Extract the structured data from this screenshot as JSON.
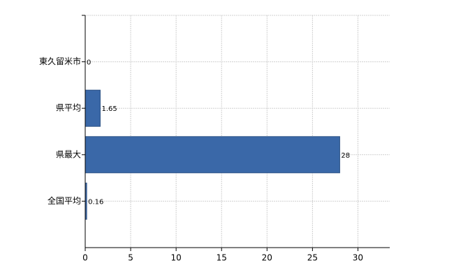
{
  "chart_data": {
    "type": "bar",
    "orientation": "horizontal",
    "categories": [
      "東久留米市",
      "県平均",
      "県最大",
      "全国平均"
    ],
    "values": [
      0,
      1.65,
      28,
      0.16
    ],
    "color": "#3a68a8",
    "xlim": [
      0,
      33.5
    ],
    "xticks": [
      0,
      5,
      10,
      15,
      20,
      25,
      30
    ],
    "grid": true
  }
}
